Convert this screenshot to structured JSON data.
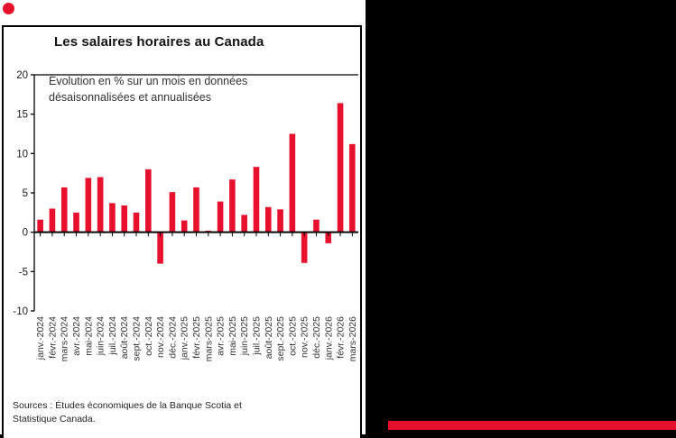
{
  "page": {
    "background_color": "#000000",
    "accent_red": "#E8112D"
  },
  "chart": {
    "title": "Les salaires horaires au Canada",
    "annotation_line1": "Évolution en % sur un mois en données",
    "annotation_line2": "désaisonnalisées et annualisées",
    "source_line1": "Sources : Études économiques de la Banque Scotia et",
    "source_line2": "Statistique Canada."
  },
  "chart_data": {
    "type": "bar",
    "title": "Les salaires horaires au Canada",
    "subtitle": "Évolution en % sur un mois en données désaisonnalisées et annualisées",
    "categories": [
      "janv.-2024",
      "févr.-2024",
      "mars-2024",
      "avr.-2024",
      "mai-2024",
      "juin-2024",
      "juil.-2024",
      "août-2024",
      "sept.-2024",
      "oct.-2024",
      "nov.-2024",
      "déc.-2024",
      "janv.-2025",
      "févr.-2025",
      "mars-2025",
      "avr.-2025",
      "mai-2025",
      "juin-2025",
      "juil.-2025",
      "août-2025",
      "sept.-2025",
      "oct.-2025",
      "nov.-2025",
      "déc.-2025",
      "janv.-2026",
      "févr.-2026",
      "mars-2026"
    ],
    "values": [
      1.6,
      3.0,
      5.7,
      2.5,
      6.9,
      7.0,
      3.7,
      3.4,
      2.5,
      8.0,
      -4.0,
      5.1,
      1.5,
      5.7,
      0.2,
      3.9,
      6.7,
      2.2,
      8.3,
      3.2,
      2.9,
      12.5,
      -3.9,
      1.6,
      -1.4,
      16.4,
      11.2
    ],
    "ylim": [
      -10,
      20
    ],
    "yticks": [
      20,
      15,
      10,
      5,
      0,
      -5,
      -10
    ],
    "bar_color": "#E8112D",
    "grid": false,
    "legend": "none",
    "source": "Sources : Études économiques de la Banque Scotia et Statistique Canada.",
    "xlabel": "",
    "ylabel": ""
  }
}
